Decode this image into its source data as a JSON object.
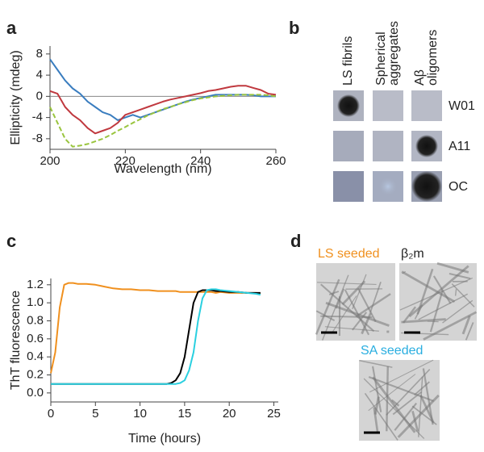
{
  "panel_labels": [
    "a",
    "b",
    "c",
    "d"
  ],
  "chart_data": [
    {
      "type": "line",
      "xlabel": "Wavelength (nm)",
      "ylabel": "Ellipticity (mdeg)",
      "x": [
        200,
        202,
        204,
        206,
        208,
        210,
        212,
        214,
        216,
        218,
        220,
        222,
        224,
        226,
        228,
        230,
        232,
        234,
        236,
        238,
        240,
        242,
        244,
        246,
        248,
        250,
        252,
        254,
        256,
        258,
        260
      ],
      "xlim": [
        200,
        260
      ],
      "xticks": [
        200,
        220,
        240,
        260
      ],
      "ylim": [
        -10,
        9.5
      ],
      "yticks": [
        -8,
        -4,
        0,
        4,
        8
      ],
      "zero_line": true,
      "series": [
        {
          "color": "#3a7dbf",
          "values": [
            7,
            5,
            3,
            1.5,
            0.5,
            -1,
            -2,
            -3,
            -3.5,
            -4.5,
            -4,
            -3.5,
            -4,
            -3.5,
            -3,
            -2.5,
            -2,
            -1.5,
            -1,
            -0.6,
            -0.3,
            0,
            0.3,
            0.3,
            0.3,
            0.3,
            0.3,
            0.2,
            0,
            0,
            0
          ]
        },
        {
          "color": "#c0393f",
          "values": [
            1,
            0.5,
            -2,
            -3.5,
            -4.5,
            -6,
            -7,
            -6.5,
            -6,
            -5,
            -3.5,
            -3,
            -2.5,
            -2,
            -1.5,
            -1,
            -0.6,
            -0.3,
            0,
            0.3,
            0.6,
            1,
            1.2,
            1.5,
            1.8,
            2,
            2,
            1.6,
            1.2,
            0.5,
            0.3
          ]
        },
        {
          "color": "#9ac53f",
          "dashed": true,
          "values": [
            -2,
            -5,
            -8,
            -9.5,
            -9.3,
            -9,
            -8.5,
            -8,
            -7.3,
            -6.5,
            -5.8,
            -5,
            -4.3,
            -3.6,
            -3,
            -2.4,
            -2,
            -1.5,
            -1.1,
            -0.7,
            -0.4,
            -0.2,
            0,
            0.1,
            0.2,
            0.3,
            0.3,
            0.3,
            0.3,
            0.2,
            0
          ]
        }
      ]
    },
    {
      "type": "line",
      "xlabel": "Time (hours)",
      "ylabel": "ThT fluorescence",
      "x": [
        0,
        0.5,
        1,
        1.5,
        2,
        2.5,
        3,
        4,
        5,
        6,
        7,
        8,
        9,
        10,
        11,
        12,
        13,
        13.5,
        14,
        14.5,
        15,
        15.5,
        16,
        16.5,
        17,
        17.5,
        18,
        18.5,
        19,
        20,
        21,
        22,
        23,
        23.5
      ],
      "xlim": [
        0,
        25.5
      ],
      "xticks": [
        0,
        5,
        10,
        15,
        20,
        25
      ],
      "ylim": [
        -0.1,
        1.27
      ],
      "yticks": [
        {
          "value": 0,
          "label": "0.0"
        },
        0.2,
        0.4,
        0.6,
        0.8,
        {
          "value": 1,
          "label": "1.0"
        },
        1.2
      ],
      "series": [
        {
          "color": "#f0901e",
          "values": [
            0.22,
            0.45,
            0.95,
            1.2,
            1.22,
            1.22,
            1.21,
            1.21,
            1.2,
            1.18,
            1.16,
            1.15,
            1.15,
            1.14,
            1.14,
            1.13,
            1.13,
            1.13,
            1.13,
            1.12,
            1.12,
            1.12,
            1.12,
            1.12,
            1.12,
            1.12,
            1.12,
            1.11,
            1.12,
            1.11,
            1.11,
            1.11,
            1.11,
            1.1
          ]
        },
        {
          "color": "#000000",
          "values": [
            0.1,
            0.1,
            0.1,
            0.1,
            0.1,
            0.1,
            0.1,
            0.1,
            0.1,
            0.1,
            0.1,
            0.1,
            0.1,
            0.1,
            0.1,
            0.1,
            0.1,
            0.11,
            0.14,
            0.22,
            0.4,
            0.7,
            1.0,
            1.12,
            1.14,
            1.14,
            1.14,
            1.13,
            1.13,
            1.12,
            1.12,
            1.11,
            1.11,
            1.11
          ]
        },
        {
          "color": "#2ad0e0",
          "values": [
            0.1,
            0.1,
            0.1,
            0.1,
            0.1,
            0.1,
            0.1,
            0.1,
            0.1,
            0.1,
            0.1,
            0.1,
            0.1,
            0.1,
            0.1,
            0.1,
            0.1,
            0.1,
            0.1,
            0.11,
            0.14,
            0.25,
            0.45,
            0.8,
            1.05,
            1.14,
            1.15,
            1.15,
            1.14,
            1.13,
            1.12,
            1.11,
            1.1,
            1.09
          ]
        }
      ]
    }
  ],
  "blot": {
    "columns": [
      [
        "LS fibrils"
      ],
      [
        "Spherical",
        "aggregates"
      ],
      [
        "Aβ",
        "oligomers"
      ]
    ],
    "rows": [
      "W01",
      "A11",
      "OC"
    ]
  },
  "micrographs": [
    "LS seeded",
    "β₂m",
    "SA seeded"
  ]
}
